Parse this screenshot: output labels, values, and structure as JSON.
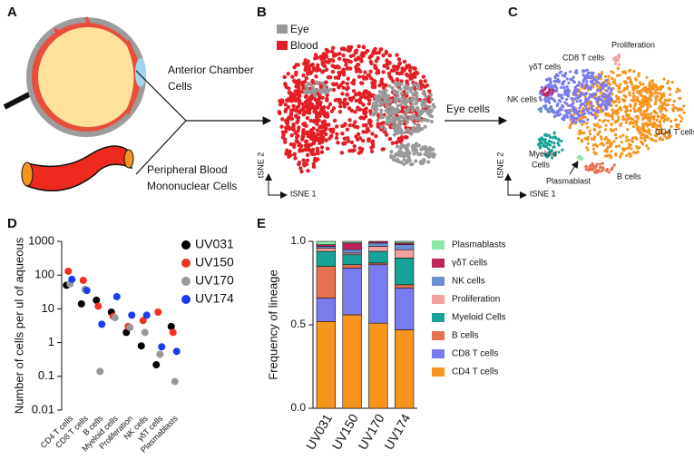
{
  "panels": {
    "a": {
      "label": "A",
      "anterior": [
        "Anterior Chamber",
        "Cells"
      ],
      "blood": [
        "Peripheral Blood",
        "Mononuclear Cells"
      ]
    },
    "b": {
      "label": "B",
      "legend": [
        "Eye",
        "Blood"
      ],
      "xaxis": "tSNE 1",
      "yaxis": "tSNE 2",
      "arrow": "Eye cells"
    },
    "c": {
      "label": "C",
      "clusters": [
        "Proliferation",
        "CD8 T cells",
        "γδT cells",
        "NK cells",
        "CD4 T cells",
        "Myeloid",
        "Cells",
        "Plasmablast",
        "B cells"
      ],
      "xaxis": "tSNE 1",
      "yaxis": "tSNE 2"
    },
    "d": {
      "label": "D"
    },
    "e": {
      "label": "E"
    }
  },
  "chart_data": [
    {
      "type": "dot",
      "ylabel": "Number of cells per ul of aqueous",
      "yscale": "log",
      "ylim": [
        0.01,
        1000
      ],
      "yticks": [
        0.01,
        0.1,
        1,
        10,
        100,
        1000
      ],
      "categories": [
        "CD4 T cells",
        "CD8 T cells",
        "B cells",
        "Myeloid cells",
        "Proliferation",
        "NK cells",
        "γδT cells",
        "Plasmablasts"
      ],
      "series": [
        {
          "name": "UV031",
          "color": "#000000",
          "values": [
            50,
            14,
            18,
            8,
            2,
            0.8,
            0.22,
            3
          ]
        },
        {
          "name": "UV150",
          "color": "#ee3224",
          "values": [
            130,
            70,
            12,
            6,
            3,
            4.5,
            8,
            2
          ]
        },
        {
          "name": "UV170",
          "color": "#999999",
          "values": [
            55,
            38,
            0.14,
            5.5,
            2.8,
            2,
            0.45,
            0.07
          ]
        },
        {
          "name": "UV174",
          "color": "#1a3cf0",
          "values": [
            75,
            35,
            3.5,
            23,
            6.5,
            6.5,
            0.75,
            0.55
          ]
        }
      ]
    },
    {
      "type": "stacked_bar",
      "ylabel": "Frequency of lineage",
      "ylim": [
        0,
        1
      ],
      "yticks": [
        {
          "value": 0,
          "label": "0.0"
        },
        {
          "value": 0.5,
          "label": "0.5"
        },
        {
          "value": 1,
          "label": "1.0"
        }
      ],
      "categories": [
        "UV031",
        "UV150",
        "UV170",
        "UV174"
      ],
      "series": [
        {
          "name": "CD4 T cells",
          "color": "#f7941d",
          "values": [
            0.52,
            0.56,
            0.51,
            0.47
          ]
        },
        {
          "name": "CD8 T cells",
          "color": "#7b7bf0",
          "values": [
            0.14,
            0.28,
            0.35,
            0.25
          ]
        },
        {
          "name": "B cells",
          "color": "#e8704f",
          "values": [
            0.19,
            0.02,
            0.01,
            0.02
          ]
        },
        {
          "name": "Myeloid Cells",
          "color": "#17a398",
          "values": [
            0.09,
            0.06,
            0.07,
            0.16
          ]
        },
        {
          "name": "Proliferation",
          "color": "#f4a0a0",
          "values": [
            0.02,
            0.01,
            0.03,
            0.05
          ]
        },
        {
          "name": "NK cells",
          "color": "#6b8fd1",
          "values": [
            0.01,
            0.02,
            0.02,
            0.03
          ]
        },
        {
          "name": "γδT cells",
          "color": "#c0245a",
          "values": [
            0.01,
            0.04,
            0.01,
            0.01
          ]
        },
        {
          "name": "Plasmablasts",
          "color": "#8de8a8",
          "values": [
            0.02,
            0.01,
            0,
            0.01
          ]
        }
      ]
    }
  ]
}
